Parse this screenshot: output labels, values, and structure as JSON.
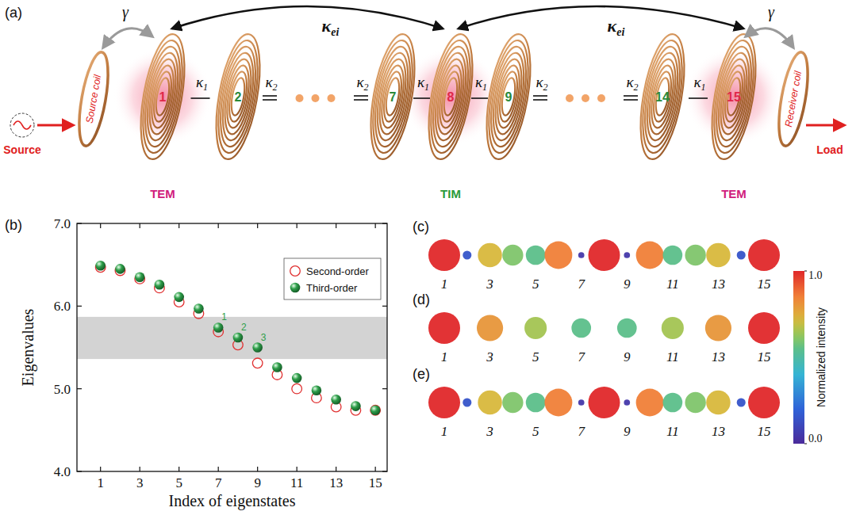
{
  "panel_a": {
    "letter": "(a)",
    "source": "Source",
    "load": "Load",
    "source_coil": "Source coil",
    "receiver_coil": "Receiver coil",
    "gamma": "γ",
    "kappa_ei": {
      "symbol": "κ",
      "sub": "ei"
    },
    "coils": [
      {
        "label": "1",
        "color": "#e0284a",
        "mode": {
          "text": "TEM",
          "color": "#d01c7c"
        }
      },
      {
        "label": "2",
        "color": "#2a8a3a"
      },
      {
        "label": "7",
        "color": "#2a8a3a"
      },
      {
        "label": "8",
        "color": "#e0284a",
        "mode": {
          "text": "TIM",
          "color": "#2a9a3a"
        }
      },
      {
        "label": "9",
        "color": "#2a8a3a"
      },
      {
        "label": "14",
        "color": "#2a8a3a"
      },
      {
        "label": "15",
        "color": "#e0284a",
        "mode": {
          "text": "TEM",
          "color": "#d01c7c"
        }
      }
    ],
    "links": [
      {
        "from": 0,
        "to": 1,
        "symbol": "κ",
        "sub": "1",
        "style": "single"
      },
      {
        "from": 1,
        "to": 2,
        "symbol": "κ",
        "sub": "2",
        "style": "chain"
      },
      {
        "from": 2,
        "to": 3,
        "symbol": "κ",
        "sub": "1",
        "style": "single"
      },
      {
        "from": 3,
        "to": 4,
        "symbol": "κ",
        "sub": "1",
        "style": "single"
      },
      {
        "from": 4,
        "to": 5,
        "symbol": "κ",
        "sub": "2",
        "style": "chain"
      },
      {
        "from": 5,
        "to": 6,
        "symbol": "κ",
        "sub": "1",
        "style": "single"
      }
    ]
  },
  "chart_data": {
    "type": "scatter",
    "letter": "(b)",
    "x": [
      1,
      2,
      3,
      4,
      5,
      6,
      7,
      8,
      9,
      10,
      11,
      12,
      13,
      14,
      15
    ],
    "xlim": [
      -0.2,
      15.6
    ],
    "xticks": [
      1,
      3,
      5,
      7,
      9,
      11,
      13,
      15
    ],
    "ylim": [
      4,
      7
    ],
    "yticks": [
      {
        "value": 4,
        "label": "4.0"
      },
      {
        "value": 5,
        "label": "5.0"
      },
      {
        "value": 6,
        "label": "6.0"
      },
      {
        "value": 7,
        "label": "7.0"
      }
    ],
    "x_label": "Index of eigenstates",
    "y_label": "Eigenvalues",
    "band": [
      5.36,
      5.87
    ],
    "legend": "upper right",
    "series": [
      {
        "name": "Second-order",
        "color": "#e03030",
        "marker": "open-circle",
        "values": [
          6.47,
          6.43,
          6.33,
          6.22,
          6.05,
          5.91,
          5.69,
          5.53,
          5.31,
          5.17,
          5.0,
          4.89,
          4.78,
          4.74,
          4.74
        ]
      },
      {
        "name": "Third-order",
        "color": "#2e9e4a",
        "marker": "sphere",
        "values": [
          6.49,
          6.45,
          6.35,
          6.26,
          6.11,
          5.97,
          5.74,
          5.62,
          5.5,
          5.26,
          5.13,
          4.98,
          4.87,
          4.79,
          4.74
        ]
      }
    ],
    "annotations": [
      {
        "series": 1,
        "x": 7,
        "text": "1"
      },
      {
        "series": 1,
        "x": 8,
        "text": "2"
      },
      {
        "series": 1,
        "x": 9,
        "text": "3"
      }
    ]
  },
  "intensity": {
    "site_labels": [
      "1",
      null,
      "3",
      null,
      "5",
      null,
      "7",
      null,
      "9",
      null,
      "11",
      null,
      "13",
      null,
      "15"
    ],
    "panels": [
      {
        "letter": "(c)",
        "values": [
          1.0,
          0.15,
          0.72,
          0.6,
          0.55,
          0.85,
          0.05,
          1.0,
          0.05,
          0.85,
          0.55,
          0.6,
          0.72,
          0.15,
          1.0
        ]
      },
      {
        "letter": "(d)",
        "values": [
          1.0,
          0,
          0.8,
          0,
          0.65,
          0,
          0.55,
          0,
          0.55,
          0,
          0.65,
          0,
          0.8,
          0,
          1.0
        ]
      },
      {
        "letter": "(e)",
        "values": [
          1.0,
          0.15,
          0.72,
          0.6,
          0.55,
          0.85,
          0.05,
          1.0,
          0.05,
          0.85,
          0.55,
          0.6,
          0.72,
          0.15,
          1.0
        ]
      }
    ],
    "colorbar": {
      "range": [
        0,
        1
      ],
      "ticks": [
        {
          "value": 0,
          "label": "0.0"
        },
        {
          "value": 1,
          "label": "1.0"
        }
      ],
      "label": "Normalized intensity"
    }
  }
}
